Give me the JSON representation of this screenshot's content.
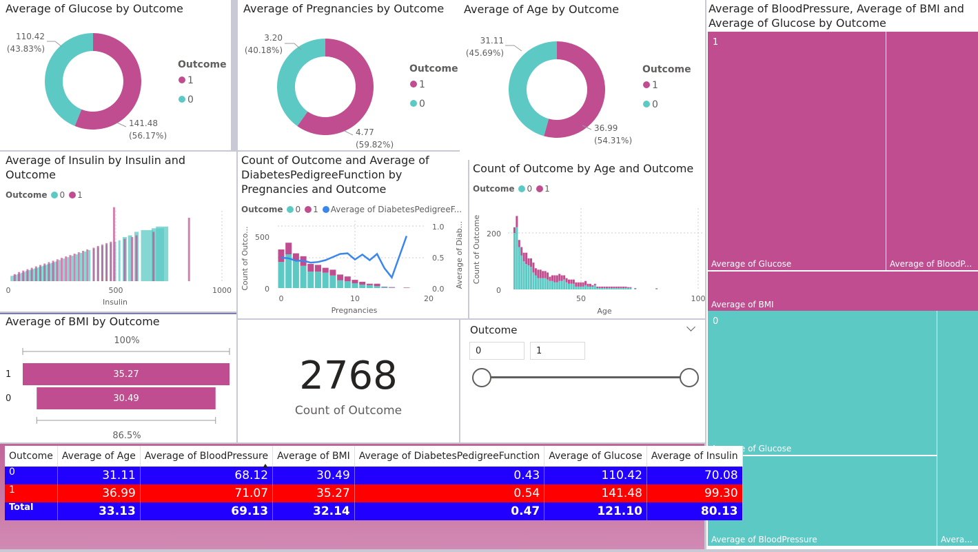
{
  "colors": {
    "c0": "#5cc9c5",
    "c1": "#c04d8f",
    "line": "#3a86ee",
    "row0": "#2200ff",
    "row1": "#ff0000",
    "total": "#2200ff"
  },
  "donuts": [
    {
      "title": "Average of Glucose by Outcome",
      "legend_title": "Outcome",
      "legend": [
        "1",
        "0"
      ],
      "label0": "110.42",
      "pct0": "(43.83%)",
      "label1": "141.48",
      "pct1": "(56.17%)"
    },
    {
      "title": "Average of Pregnancies by Outcome",
      "legend_title": "Outcome",
      "legend": [
        "1",
        "0"
      ],
      "label0": "3.20",
      "pct0": "(40.18%)",
      "label1": "4.77",
      "pct1": "(59.82%)"
    },
    {
      "title": "Average of Age by Outcome",
      "legend_title": "Outcome",
      "legend": [
        "1",
        "0"
      ],
      "label0": "31.11",
      "pct0": "(45.69%)",
      "label1": "36.99",
      "pct1": "(54.31%)"
    }
  ],
  "insulin": {
    "title": "Average of Insulin by Insulin and\nOutcome",
    "legend_title": "Outcome",
    "legend": [
      "0",
      "1"
    ],
    "xlabel": "Insulin",
    "ticks": [
      "0",
      "500",
      "1000"
    ]
  },
  "preg": {
    "title": "Count of Outcome and Average of\nDiabetesPedigreeFunction by\nPregnancies and Outcome",
    "legend_title": "Outcome",
    "legend": [
      "0",
      "1",
      "Average of DiabetesPedigreeF..."
    ],
    "xlabel": "Pregnancies",
    "ylabel": "Count of Outco...",
    "y2label": "Average of Diab...",
    "xticks": [
      "0",
      "10",
      "20"
    ],
    "yticks": [
      "0",
      "500"
    ],
    "y2ticks": [
      "0.0",
      "0.5",
      "1.0"
    ]
  },
  "age": {
    "title": "Count of Outcome by Age and Outcome",
    "legend_title": "Outcome",
    "legend": [
      "0",
      "1"
    ],
    "xlabel": "Age",
    "ylabel": "Count of Outcome",
    "xticks": [
      "50",
      "100"
    ],
    "yticks": [
      "0",
      "200"
    ]
  },
  "bmi": {
    "title": "Average of BMI by Outcome",
    "top_pct": "100%",
    "bottom_pct": "86.5%",
    "rows": [
      {
        "cat": "1",
        "label": "35.27"
      },
      {
        "cat": "0",
        "label": "30.49"
      }
    ]
  },
  "card": {
    "value": "2768",
    "label": "Count of Outcome"
  },
  "slicer": {
    "title": "Outcome",
    "min": "0",
    "max": "1"
  },
  "treemap": {
    "title": "Average of BloodPressure, Average of BMI and\nAverage of Glucose by Outcome",
    "g1": "1",
    "g0": "0",
    "t1": [
      "Average of Glucose",
      "Average of BloodP...",
      "Average of BMI"
    ],
    "t0": [
      "Average of Glucose",
      "Average of BloodPressure",
      "Avera..."
    ]
  },
  "table": {
    "headers": [
      "Outcome",
      "Average of Age",
      "Average of BloodPressure",
      "Average of BMI",
      "Average of DiabetesPedigreeFunction",
      "Average of Glucose",
      "Average of Insulin"
    ],
    "rows": [
      [
        "0",
        "31.11",
        "68.12",
        "30.49",
        "0.43",
        "110.42",
        "70.08"
      ],
      [
        "1",
        "36.99",
        "71.07",
        "35.27",
        "0.54",
        "141.48",
        "99.30"
      ],
      [
        "Total",
        "33.13",
        "69.13",
        "32.14",
        "0.47",
        "121.10",
        "80.13"
      ]
    ]
  },
  "chart_data": [
    {
      "type": "pie",
      "title": "Average of Glucose by Outcome",
      "legend_title": "Outcome",
      "categories": [
        "0",
        "1"
      ],
      "values": [
        110.42,
        141.48
      ]
    },
    {
      "type": "pie",
      "title": "Average of Pregnancies by Outcome",
      "legend_title": "Outcome",
      "categories": [
        "0",
        "1"
      ],
      "values": [
        3.2,
        4.77
      ]
    },
    {
      "type": "pie",
      "title": "Average of Age by Outcome",
      "legend_title": "Outcome",
      "categories": [
        "0",
        "1"
      ],
      "values": [
        31.11,
        36.99
      ]
    },
    {
      "type": "bar",
      "title": "Average of Insulin by Insulin and Outcome",
      "xlabel": "Insulin",
      "xlim": [
        0,
        1000
      ],
      "series": [
        {
          "name": "0",
          "x": [
            15,
            25,
            35,
            45,
            55,
            65,
            75,
            85,
            95,
            105,
            115,
            125,
            135,
            145,
            155,
            165,
            175,
            185,
            195,
            205,
            215,
            225,
            240,
            260,
            280,
            300,
            320,
            340,
            360,
            380,
            400,
            420,
            440,
            460,
            480,
            500,
            520,
            545,
            570,
            600,
            650,
            700,
            720
          ],
          "values": [
            15,
            16,
            18,
            20,
            22,
            24,
            26,
            29,
            31,
            32,
            34,
            36,
            38,
            40,
            42,
            44,
            46,
            48,
            50,
            52,
            54,
            56,
            60,
            64,
            68,
            72,
            76,
            80,
            84,
            88,
            92,
            96,
            100,
            104,
            108,
            112,
            116,
            125,
            130,
            140,
            145,
            150,
            155
          ]
        },
        {
          "name": "1",
          "x": [
            30,
            50,
            70,
            90,
            110,
            130,
            150,
            170,
            190,
            210,
            230,
            250,
            270,
            290,
            310,
            330,
            350,
            370,
            400,
            420,
            440,
            460,
            480,
            495,
            545,
            580,
            600,
            680,
            846
          ],
          "values": [
            20,
            26,
            30,
            34,
            38,
            42,
            46,
            50,
            54,
            58,
            62,
            66,
            70,
            74,
            78,
            82,
            86,
            90,
            95,
            100,
            104,
            108,
            112,
            210,
            120,
            125,
            130,
            140,
            180
          ]
        }
      ]
    },
    {
      "type": "bar",
      "title": "Count of Outcome and Average of DiabetesPedigreeFunction by Pregnancies and Outcome",
      "x": [
        0,
        1,
        2,
        3,
        4,
        5,
        6,
        7,
        8,
        9,
        10,
        11,
        12,
        13,
        14,
        15,
        17
      ],
      "xlabel": "Pregnancies",
      "ylim": [
        0,
        700
      ],
      "y2lim": [
        0,
        1.0
      ],
      "series": [
        {
          "name": "0",
          "values": [
            270,
            350,
            280,
            230,
            170,
            170,
            160,
            130,
            80,
            70,
            50,
            35,
            30,
            20,
            10,
            5,
            2
          ]
        },
        {
          "name": "1",
          "values": [
            130,
            120,
            80,
            100,
            80,
            70,
            50,
            60,
            60,
            50,
            35,
            30,
            15,
            25,
            5,
            5,
            4
          ]
        },
        {
          "name": "Average of DiabetesPedigreeF...",
          "type": "line",
          "values": [
            0.49,
            0.48,
            0.44,
            0.44,
            0.41,
            0.42,
            0.45,
            0.5,
            0.55,
            0.56,
            0.46,
            0.54,
            0.45,
            0.55,
            0.32,
            0.17,
            0.84
          ]
        }
      ]
    },
    {
      "type": "bar",
      "title": "Count of Outcome by Age and Outcome",
      "xlabel": "Age",
      "xlim": [
        20,
        100
      ],
      "ylim": [
        0,
        300
      ],
      "x": [
        21,
        22,
        23,
        24,
        25,
        26,
        27,
        28,
        29,
        30,
        31,
        32,
        33,
        34,
        35,
        36,
        37,
        38,
        39,
        40,
        41,
        42,
        43,
        44,
        45,
        46,
        47,
        48,
        49,
        50,
        51,
        52,
        53,
        54,
        55,
        56,
        57,
        58,
        59,
        60,
        61,
        62,
        63,
        64,
        65,
        66,
        67,
        68,
        69,
        70,
        72,
        81
      ],
      "series": [
        {
          "name": "0",
          "values": [
            200,
            220,
            150,
            120,
            100,
            90,
            85,
            80,
            60,
            50,
            40,
            40,
            40,
            40,
            35,
            30,
            30,
            25,
            25,
            30,
            30,
            35,
            25,
            20,
            20,
            20,
            10,
            10,
            10,
            10,
            15,
            10,
            10,
            10,
            15,
            5,
            5,
            5,
            5,
            5,
            5,
            5,
            5,
            5,
            5,
            5,
            5,
            5,
            5,
            5,
            3,
            2
          ]
        },
        {
          "name": "1",
          "values": [
            20,
            40,
            25,
            30,
            30,
            40,
            25,
            30,
            35,
            25,
            30,
            30,
            25,
            25,
            25,
            15,
            20,
            25,
            25,
            25,
            20,
            15,
            15,
            15,
            15,
            15,
            15,
            15,
            15,
            15,
            15,
            10,
            10,
            5,
            5,
            5,
            5,
            5,
            5,
            5,
            5,
            5,
            5,
            5,
            5,
            5,
            5,
            5,
            3,
            3,
            2,
            2
          ]
        }
      ]
    },
    {
      "type": "bar",
      "title": "Average of BMI by Outcome",
      "categories": [
        "1",
        "0"
      ],
      "values": [
        35.27,
        30.49
      ]
    },
    {
      "type": "table",
      "title": "Average of BloodPressure, Average of BMI and Average of Glucose by Outcome",
      "categories": [
        "1",
        "0"
      ],
      "series": [
        {
          "name": "Average of Glucose",
          "values": [
            141.48,
            110.42
          ]
        },
        {
          "name": "Average of BloodPressure",
          "values": [
            71.07,
            68.12
          ]
        },
        {
          "name": "Average of BMI",
          "values": [
            35.27,
            30.49
          ]
        }
      ]
    }
  ]
}
